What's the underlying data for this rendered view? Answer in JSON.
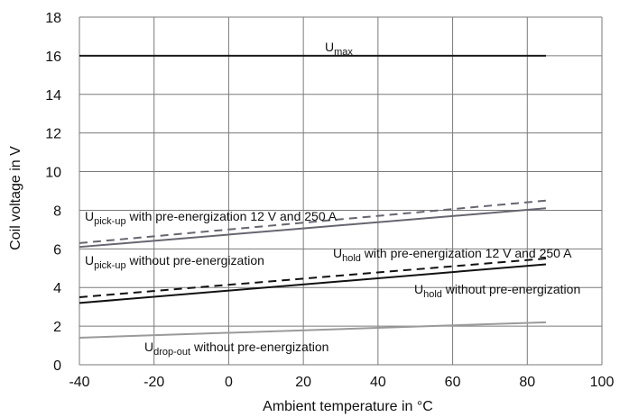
{
  "chart_data": {
    "type": "line",
    "xlabel": "Ambient temperature in °C",
    "ylabel": "Coil voltage in V",
    "xlim": [
      -40,
      100
    ],
    "ylim": [
      0,
      18
    ],
    "x_ticks": [
      -40,
      -20,
      0,
      20,
      40,
      60,
      80,
      100
    ],
    "y_ticks": [
      0,
      2,
      4,
      6,
      8,
      10,
      12,
      14,
      16,
      18
    ],
    "grid": true,
    "series": [
      {
        "label_main": "U",
        "label_sub": "max",
        "label_rest": "",
        "color": "#1a1a1a",
        "dash": "solid",
        "x": [
          -40,
          85
        ],
        "y": [
          16.0,
          16.0
        ]
      },
      {
        "label_main": "U",
        "label_sub": "pick-up",
        "label_rest": " with pre-energization 12 V and 250 A",
        "color": "#666670",
        "dash": "dashed",
        "x": [
          -40,
          85
        ],
        "y": [
          6.3,
          8.5
        ]
      },
      {
        "label_main": "U",
        "label_sub": "pick-up",
        "label_rest": " without pre-energization",
        "color": "#666670",
        "dash": "solid",
        "x": [
          -40,
          85
        ],
        "y": [
          6.1,
          8.1
        ]
      },
      {
        "label_main": "U",
        "label_sub": "hold",
        "label_rest": " with pre-energization 12 V and 250 A",
        "color": "#111111",
        "dash": "dashed",
        "x": [
          -40,
          85
        ],
        "y": [
          3.5,
          5.5
        ]
      },
      {
        "label_main": "U",
        "label_sub": "hold",
        "label_rest": " without pre-energization",
        "color": "#111111",
        "dash": "solid",
        "x": [
          -40,
          85
        ],
        "y": [
          3.2,
          5.2
        ]
      },
      {
        "label_main": "U",
        "label_sub": "drop-out",
        "label_rest": " without pre-energization",
        "color": "#9a9a9a",
        "dash": "solid",
        "x": [
          -40,
          85
        ],
        "y": [
          1.4,
          2.2
        ]
      }
    ]
  }
}
